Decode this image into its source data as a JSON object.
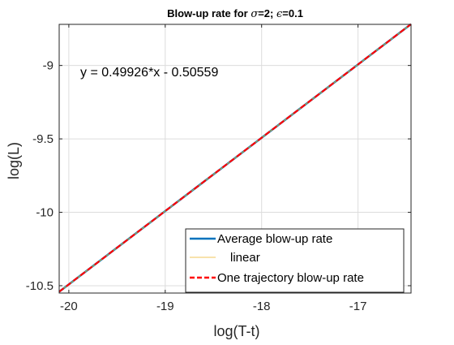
{
  "chart_data": {
    "type": "line",
    "title_prefix": "Blow-up rate for ",
    "title_sigma": "σ",
    "title_mid": "=2; ",
    "title_eps": "ϵ",
    "title_suffix": "=0.1",
    "xlabel": "log(T-t)",
    "ylabel": "log(L)",
    "xlim": [
      -20.1,
      -16.45
    ],
    "ylim": [
      -10.55,
      -8.72
    ],
    "xticks": [
      -20,
      -19,
      -18,
      -17
    ],
    "yticks": [
      -10.5,
      -10,
      -9.5,
      -9
    ],
    "xtick_labels": [
      "-20",
      "-19",
      "-18",
      "-17"
    ],
    "ytick_labels": [
      "-10.5",
      "-10",
      "-9.5",
      "-9"
    ],
    "grid": true,
    "legend_position": "bottom-right",
    "annotation": "y = 0.49926*x - 0.50559",
    "series": [
      {
        "name": "Average blow-up rate",
        "color": "#0072BD",
        "style": "solid",
        "x": [
          -20.1,
          -16.45
        ],
        "y": [
          -10.5409,
          -8.7186
        ]
      },
      {
        "name": "linear",
        "color": "#EDB120",
        "style": "solid-thin",
        "x": [
          -20.1,
          -16.45
        ],
        "y": [
          -10.5409,
          -8.7186
        ]
      },
      {
        "name": "One trajectory blow-up rate",
        "color": "#FF0000",
        "style": "dashed",
        "x": [
          -20.1,
          -16.45
        ],
        "y": [
          -10.5409,
          -8.7186
        ]
      }
    ]
  }
}
